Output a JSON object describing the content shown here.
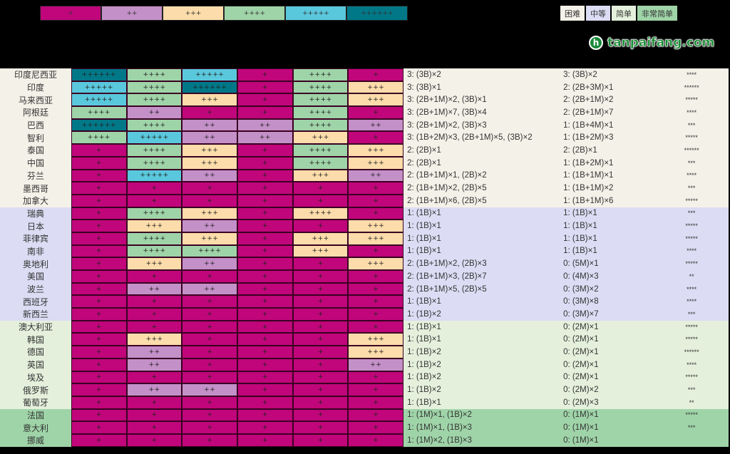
{
  "levels": [
    {
      "label": "+",
      "color": "#c0067a"
    },
    {
      "label": "++",
      "color": "#c490c8"
    },
    {
      "label": "+++",
      "color": "#fcdcaa"
    },
    {
      "label": "++++",
      "color": "#9fd4a8"
    },
    {
      "label": "+++++",
      "color": "#5ac8dc"
    },
    {
      "label": "++++++",
      "color": "#007888"
    }
  ],
  "groups": [
    {
      "label": "困难",
      "color": "#f4f1e8"
    },
    {
      "label": "中等",
      "color": "#dcdcf4"
    },
    {
      "label": "简单",
      "color": "#e4f0dc"
    },
    {
      "label": "非常简单",
      "color": "#9fd4a8"
    }
  ],
  "watermark": "tanpaifang.com",
  "chart_data": {
    "type": "table",
    "rows": [
      {
        "name": "印度尼西亚",
        "group": 0,
        "cells": [
          6,
          4,
          5,
          1,
          4,
          1
        ],
        "a": "3: (3B)×2",
        "b": "3: (3B)×2",
        "stars": "****"
      },
      {
        "name": "印度",
        "group": 0,
        "cells": [
          5,
          4,
          6,
          1,
          4,
          3
        ],
        "a": "3: (3B)×1",
        "b": "2: (2B+3M)×1",
        "stars": "******"
      },
      {
        "name": "马来西亚",
        "group": 0,
        "cells": [
          5,
          4,
          3,
          1,
          4,
          3
        ],
        "a": "3: (2B+1M)×2, (3B)×1",
        "b": "2: (2B+1M)×2",
        "stars": "*****"
      },
      {
        "name": "阿根廷",
        "group": 0,
        "cells": [
          4,
          2,
          1,
          1,
          4,
          1
        ],
        "a": "3: (2B+1M)×7, (3B)×4",
        "b": "2: (2B+1M)×7",
        "stars": "****"
      },
      {
        "name": "巴西",
        "group": 0,
        "cells": [
          6,
          4,
          2,
          2,
          4,
          2
        ],
        "a": "3: (2B+1M)×2, (3B)×3",
        "b": "1: (1B+4M)×1",
        "stars": "***"
      },
      {
        "name": "智利",
        "group": 0,
        "cells": [
          4,
          5,
          2,
          2,
          3,
          1
        ],
        "a": "3: (1B+2M)×3, (2B+1M)×5, (3B)×2",
        "b": "1: (1B+2M)×3",
        "stars": "*****"
      },
      {
        "name": "泰国",
        "group": 0,
        "cells": [
          1,
          4,
          3,
          1,
          4,
          3
        ],
        "a": "2: (2B)×1",
        "b": "2: (2B)×1",
        "stars": "******"
      },
      {
        "name": "中国",
        "group": 0,
        "cells": [
          1,
          4,
          3,
          1,
          4,
          3
        ],
        "a": "2: (2B)×1",
        "b": "1: (1B+2M)×1",
        "stars": "***"
      },
      {
        "name": "芬兰",
        "group": 0,
        "cells": [
          1,
          5,
          2,
          1,
          3,
          2
        ],
        "a": "2: (1B+1M)×1, (2B)×2",
        "b": "1: (1B+1M)×1",
        "stars": "****"
      },
      {
        "name": "墨西哥",
        "group": 0,
        "cells": [
          1,
          1,
          1,
          1,
          1,
          1
        ],
        "a": "2: (1B+1M)×2, (2B)×5",
        "b": "1: (1B+1M)×2",
        "stars": "***"
      },
      {
        "name": "加拿大",
        "group": 0,
        "cells": [
          1,
          1,
          1,
          1,
          1,
          1
        ],
        "a": "2: (1B+1M)×6, (2B)×5",
        "b": "1: (1B+1M)×6",
        "stars": "*****"
      },
      {
        "name": "瑞典",
        "group": 1,
        "cells": [
          1,
          4,
          3,
          1,
          4,
          1
        ],
        "color_override": {
          "col": 4,
          "level": 3
        },
        "a": "1: (1B)×1",
        "b": "1: (1B)×1",
        "stars": "***"
      },
      {
        "name": "日本",
        "group": 1,
        "cells": [
          1,
          3,
          2,
          1,
          1,
          3
        ],
        "a": "1: (1B)×1",
        "b": "1: (1B)×1",
        "stars": "*****"
      },
      {
        "name": "菲律宾",
        "group": 1,
        "cells": [
          1,
          4,
          3,
          1,
          3,
          3
        ],
        "a": "1: (1B)×1",
        "b": "1: (1B)×1",
        "stars": "*****"
      },
      {
        "name": "南非",
        "group": 1,
        "cells": [
          1,
          4,
          4,
          1,
          3,
          1
        ],
        "a": "1: (1B)×1",
        "b": "1: (1B)×1",
        "stars": "****"
      },
      {
        "name": "奥地利",
        "group": 1,
        "cells": [
          1,
          3,
          2,
          1,
          1,
          3
        ],
        "a": "2: (1B+1M)×2, (2B)×3",
        "b": "0: (5M)×1",
        "stars": "*****"
      },
      {
        "name": "美国",
        "group": 1,
        "cells": [
          1,
          1,
          1,
          1,
          1,
          1
        ],
        "a": "2: (1B+1M)×3, (2B)×7",
        "b": "0: (4M)×3",
        "stars": "**"
      },
      {
        "name": "波兰",
        "group": 1,
        "cells": [
          1,
          2,
          2,
          1,
          1,
          1
        ],
        "a": "2: (1B+1M)×5, (2B)×5",
        "b": "0: (3M)×2",
        "stars": "****"
      },
      {
        "name": "西班牙",
        "group": 1,
        "cells": [
          1,
          1,
          1,
          1,
          1,
          1
        ],
        "a": "1: (1B)×1",
        "b": "0: (3M)×8",
        "stars": "****"
      },
      {
        "name": "新西兰",
        "group": 1,
        "cells": [
          1,
          1,
          1,
          1,
          1,
          1
        ],
        "a": "1: (1B)×2",
        "b": "0: (3M)×7",
        "stars": "***"
      },
      {
        "name": "澳大利亚",
        "group": 2,
        "cells": [
          1,
          1,
          1,
          1,
          1,
          1
        ],
        "a": "1: (1B)×1",
        "b": "0: (2M)×1",
        "stars": "*****"
      },
      {
        "name": "韩国",
        "group": 2,
        "cells": [
          1,
          3,
          1,
          1,
          1,
          3
        ],
        "a": "1: (1B)×1",
        "b": "0: (2M)×1",
        "stars": "*****"
      },
      {
        "name": "德国",
        "group": 2,
        "cells": [
          1,
          2,
          1,
          1,
          1,
          3
        ],
        "a": "1: (1B)×2",
        "b": "0: (2M)×1",
        "stars": "******"
      },
      {
        "name": "英国",
        "group": 2,
        "cells": [
          1,
          2,
          1,
          1,
          1,
          2
        ],
        "a": "1: (1B)×2",
        "b": "0: (2M)×1",
        "stars": "****"
      },
      {
        "name": "埃及",
        "group": 2,
        "cells": [
          1,
          1,
          1,
          1,
          1,
          1
        ],
        "a": "1: (1B)×2",
        "b": "0: (2M)×1",
        "stars": "*****"
      },
      {
        "name": "俄罗斯",
        "group": 2,
        "cells": [
          1,
          2,
          2,
          1,
          1,
          1
        ],
        "a": "1: (1B)×2",
        "b": "0: (2M)×2",
        "stars": "***"
      },
      {
        "name": "葡萄牙",
        "group": 2,
        "cells": [
          1,
          1,
          1,
          1,
          1,
          1
        ],
        "a": "1: (1B)×1",
        "b": "0: (2M)×3",
        "stars": "**"
      },
      {
        "name": "法国",
        "group": 3,
        "cells": [
          1,
          1,
          1,
          1,
          1,
          1
        ],
        "a": "1: (1M)×1, (1B)×2",
        "b": "0: (1M)×1",
        "stars": "*****"
      },
      {
        "name": "意大利",
        "group": 3,
        "cells": [
          1,
          1,
          1,
          1,
          1,
          1
        ],
        "a": "1: (1M)×1, (1B)×3",
        "b": "0: (1M)×1",
        "stars": "***"
      },
      {
        "name": "挪威",
        "group": 3,
        "cells": [
          1,
          1,
          1,
          1,
          1,
          1
        ],
        "a": "1: (1M)×2, (1B)×3",
        "b": "0: (1M)×1",
        "stars": ""
      }
    ]
  }
}
